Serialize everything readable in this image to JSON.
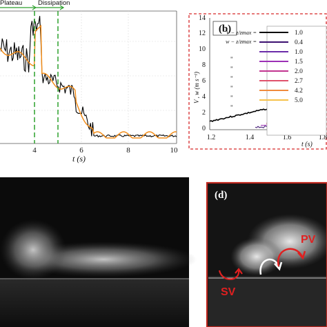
{
  "panel_a": {
    "phase_labels": [
      "Plateau",
      "Dissipation"
    ],
    "x_ticks": [
      "4",
      "6",
      "8",
      "10"
    ],
    "x_label": "t (s)",
    "colors": {
      "raw": "#000000",
      "smooth": "#f28e1c",
      "markers": "#2ca02c",
      "axis": "#555555"
    }
  },
  "panel_b": {
    "tag": "(b)",
    "y_ticks": [
      "0",
      "2",
      "4",
      "6",
      "8",
      "10",
      "12",
      "14"
    ],
    "y_label": "V , w (m s⁻¹)",
    "x_ticks": [
      "1.2",
      "1.4",
      "1.6",
      "1.8"
    ],
    "x_label": "t (s)",
    "legend_header_v": "V − z/zmax =",
    "legend_header_w": "w − z/zmax =",
    "legend_ditto": "\"",
    "legend": [
      {
        "value": "1.0",
        "color": "#000000"
      },
      {
        "value": "0.4",
        "color": "#3b0f70"
      },
      {
        "value": "1.0",
        "color": "#6a2ba8"
      },
      {
        "value": "1.5",
        "color": "#9c2fb5"
      },
      {
        "value": "2.0",
        "color": "#c2338f"
      },
      {
        "value": "2.7",
        "color": "#e0506b"
      },
      {
        "value": "4.2",
        "color": "#f08a3c"
      },
      {
        "value": "5.0",
        "color": "#f6c24a"
      }
    ],
    "border_color": "#d62728"
  },
  "panel_d": {
    "tag": "(d)",
    "label_pv": "PV",
    "label_sv": "SV",
    "border_color": "#c0281f",
    "label_color": "#e02020"
  }
}
